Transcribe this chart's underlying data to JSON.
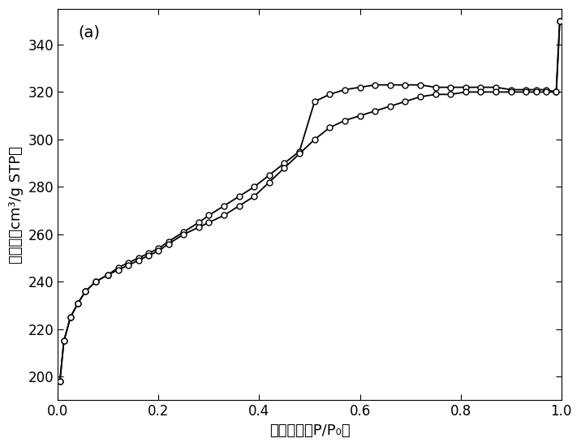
{
  "title_label": "(a)",
  "xlabel": "相对压力（P/P₀）",
  "ylabel": "吸附量（cm³/g STP）",
  "xlim": [
    0.0,
    1.0
  ],
  "ylim": [
    190,
    355
  ],
  "yticks": [
    200,
    220,
    240,
    260,
    280,
    300,
    320,
    340
  ],
  "xticks": [
    0.0,
    0.2,
    0.4,
    0.6,
    0.8,
    1.0
  ],
  "adsorption_x": [
    0.004,
    0.012,
    0.025,
    0.04,
    0.055,
    0.075,
    0.1,
    0.12,
    0.14,
    0.16,
    0.18,
    0.2,
    0.22,
    0.25,
    0.28,
    0.3,
    0.33,
    0.36,
    0.39,
    0.42,
    0.45,
    0.48,
    0.51,
    0.54,
    0.57,
    0.6,
    0.63,
    0.66,
    0.69,
    0.72,
    0.75,
    0.78,
    0.81,
    0.84,
    0.87,
    0.9,
    0.93,
    0.95,
    0.97,
    0.99,
    0.997
  ],
  "adsorption_y": [
    198,
    215,
    225,
    231,
    236,
    240,
    243,
    246,
    248,
    250,
    252,
    254,
    257,
    261,
    265,
    268,
    272,
    276,
    280,
    285,
    290,
    295,
    316,
    319,
    321,
    322,
    323,
    323,
    323,
    323,
    322,
    322,
    322,
    322,
    322,
    321,
    321,
    321,
    321,
    320,
    350
  ],
  "desorption_x": [
    0.997,
    0.99,
    0.97,
    0.95,
    0.93,
    0.9,
    0.87,
    0.84,
    0.81,
    0.78,
    0.75,
    0.72,
    0.69,
    0.66,
    0.63,
    0.6,
    0.57,
    0.54,
    0.51,
    0.48,
    0.45,
    0.42,
    0.39,
    0.36,
    0.33,
    0.3,
    0.28,
    0.25,
    0.22,
    0.2,
    0.18,
    0.16,
    0.14,
    0.12,
    0.1,
    0.075,
    0.055,
    0.04,
    0.025,
    0.012,
    0.004
  ],
  "desorption_y": [
    350,
    320,
    320,
    320,
    320,
    320,
    320,
    320,
    320,
    319,
    319,
    318,
    316,
    314,
    312,
    310,
    308,
    305,
    300,
    294,
    288,
    282,
    276,
    272,
    268,
    265,
    263,
    260,
    256,
    253,
    251,
    249,
    247,
    245,
    243,
    240,
    236,
    231,
    225,
    215,
    198
  ],
  "line_color": "#000000",
  "marker_fill": "#ffffff",
  "marker_edge": "#000000",
  "marker_size": 5,
  "linewidth": 1.3,
  "tick_labelsize": 12,
  "label_fontsize": 13,
  "title_fontsize": 14
}
